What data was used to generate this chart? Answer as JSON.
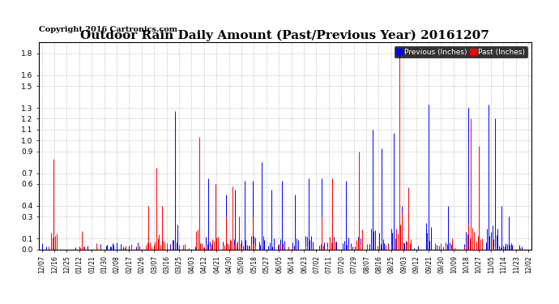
{
  "title": "Outdoor Rain Daily Amount (Past/Previous Year) 20161207",
  "copyright_text": "Copyright 2016 Cartronics.com",
  "legend_previous_label": "Previous (Inches)",
  "legend_past_label": "Past (Inches)",
  "legend_previous_color": "#0000FF",
  "legend_past_color": "#FF0000",
  "y_min": 0.0,
  "y_max": 1.9,
  "yticks": [
    0.0,
    0.1,
    0.3,
    0.4,
    0.6,
    0.7,
    0.9,
    1.0,
    1.1,
    1.2,
    1.3,
    1.5,
    1.6,
    1.8
  ],
  "background_color": "#FFFFFF",
  "grid_color": "#AAAAAA",
  "title_fontsize": 11,
  "copyright_fontsize": 7,
  "x_labels": [
    "12/07",
    "12/16",
    "12/25",
    "01/12",
    "01/21",
    "01/30",
    "02/08",
    "02/17",
    "02/26",
    "03/07",
    "03/16",
    "03/25",
    "04/03",
    "04/12",
    "04/21",
    "04/30",
    "05/09",
    "05/18",
    "05/27",
    "06/05",
    "06/14",
    "06/23",
    "07/02",
    "07/11",
    "07/20",
    "07/29",
    "08/07",
    "08/16",
    "08/25",
    "09/03",
    "09/12",
    "09/21",
    "09/30",
    "10/09",
    "10/18",
    "10/27",
    "11/05",
    "11/14",
    "11/23",
    "12/02"
  ],
  "n_days": 366,
  "seed": 42
}
